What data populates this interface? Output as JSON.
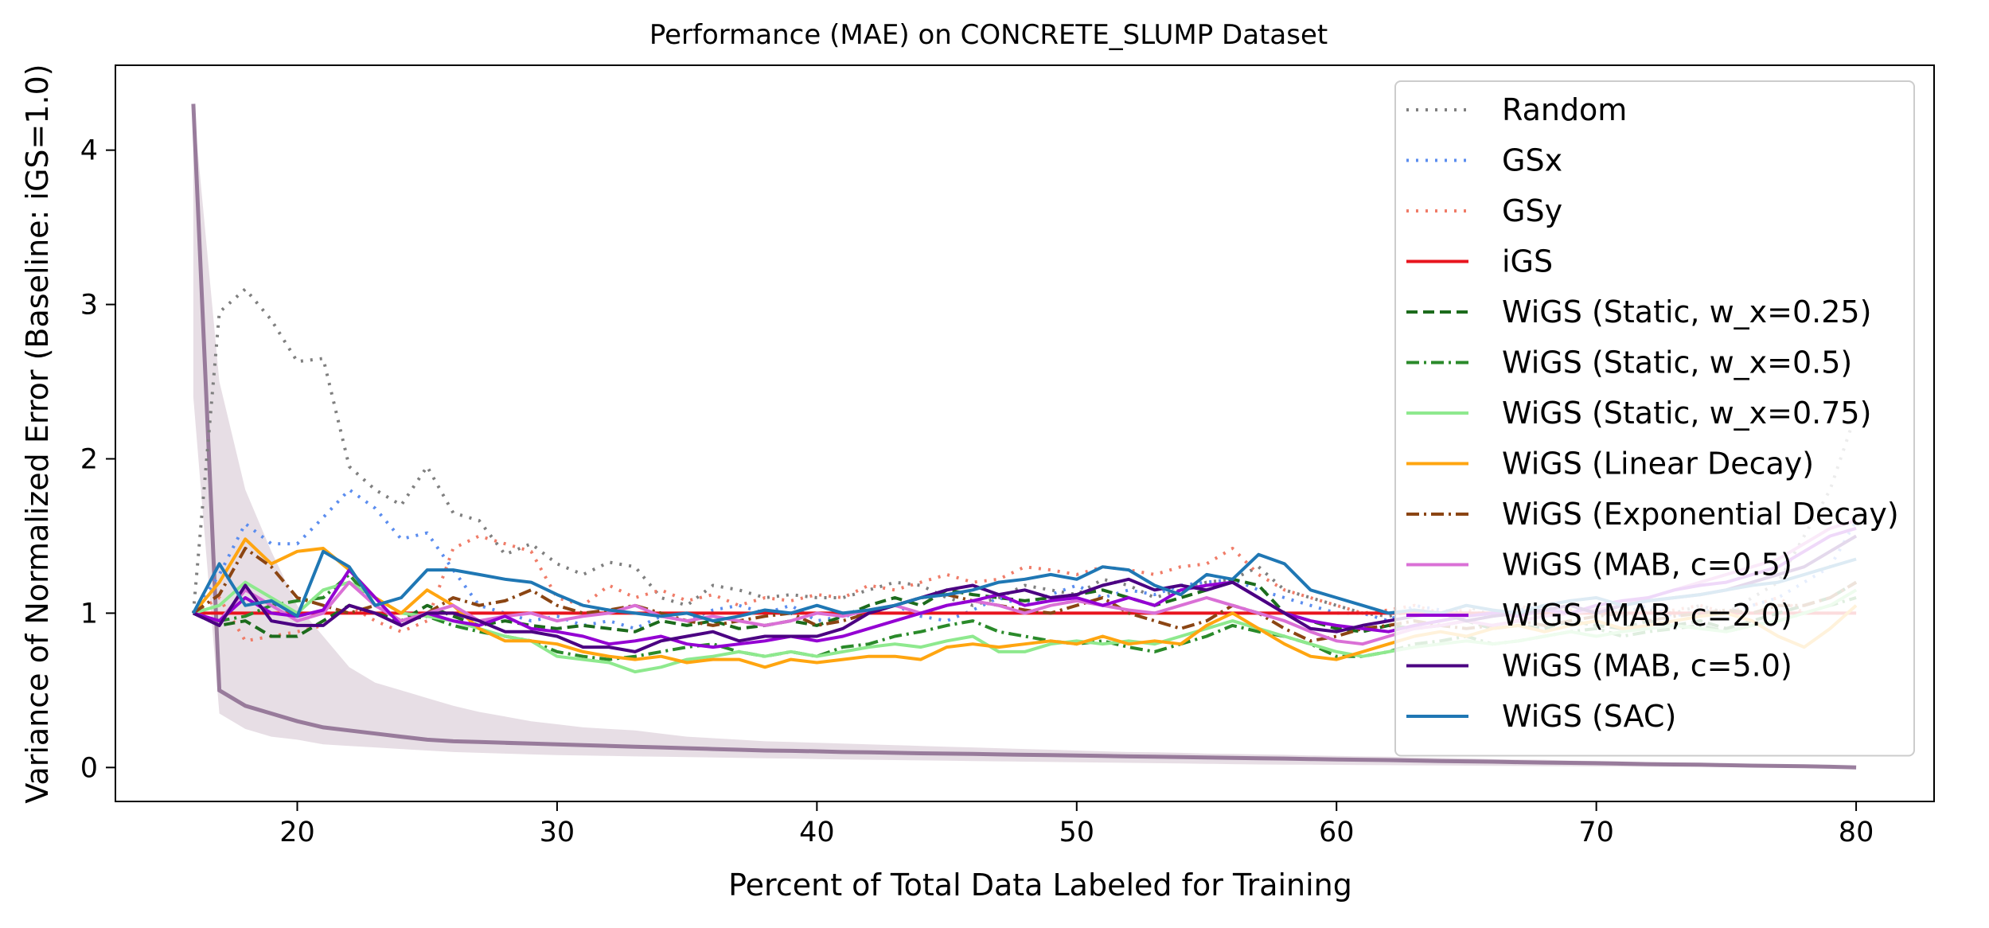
{
  "chart_data": {
    "type": "line",
    "title": "Performance (MAE) on CONCRETE_SLUMP Dataset",
    "xlabel": "Percent of Total Data Labeled for Training",
    "ylabel": "Variance of Normalized Error (Baseline: iGS=1.0)",
    "xlim": [
      13,
      83
    ],
    "ylim": [
      -0.22,
      4.55
    ],
    "xticks": [
      20,
      30,
      40,
      50,
      60,
      70,
      80
    ],
    "yticks": [
      0,
      1,
      2,
      3,
      4
    ],
    "grid": false,
    "legend_position": "top-right",
    "x": [
      16,
      17,
      18,
      19,
      20,
      21,
      22,
      23,
      24,
      25,
      26,
      27,
      28,
      29,
      30,
      31,
      32,
      33,
      34,
      35,
      36,
      37,
      38,
      39,
      40,
      41,
      42,
      43,
      44,
      45,
      46,
      47,
      48,
      49,
      50,
      51,
      52,
      53,
      54,
      55,
      56,
      57,
      58,
      59,
      60,
      61,
      62,
      63,
      64,
      65,
      66,
      67,
      68,
      69,
      70,
      71,
      72,
      73,
      74,
      75,
      76,
      77,
      78,
      79,
      80
    ],
    "series": [
      {
        "name": "Random",
        "color": "#7f7f7f",
        "dash": "dotted",
        "values": [
          1.0,
          2.95,
          3.1,
          2.9,
          2.63,
          2.65,
          1.95,
          1.8,
          1.7,
          1.95,
          1.65,
          1.6,
          1.38,
          1.45,
          1.32,
          1.25,
          1.33,
          1.3,
          1.1,
          1.05,
          1.18,
          1.15,
          1.1,
          1.12,
          1.1,
          1.1,
          1.15,
          1.2,
          1.18,
          1.1,
          1.05,
          1.1,
          1.18,
          1.15,
          1.12,
          1.22,
          1.18,
          1.1,
          1.15,
          1.2,
          1.22,
          1.3,
          1.15,
          1.1,
          1.05,
          1.0,
          0.98,
          1.02,
          1.0,
          1.05,
          0.98,
          1.0,
          1.02,
          1.05,
          1.0,
          0.98,
          1.02,
          1.0,
          1.05,
          1.0,
          1.1,
          1.2,
          1.5,
          1.8,
          2.3
        ]
      },
      {
        "name": "GSx",
        "color": "#5b8def",
        "dash": "dotted",
        "values": [
          1.0,
          1.25,
          1.58,
          1.45,
          1.45,
          1.62,
          1.8,
          1.68,
          1.48,
          1.52,
          1.28,
          1.05,
          1.0,
          0.95,
          0.98,
          0.92,
          0.95,
          0.9,
          0.98,
          0.95,
          1.02,
          1.05,
          1.0,
          1.05,
          0.95,
          0.98,
          1.0,
          1.05,
          0.98,
          0.95,
          1.02,
          1.1,
          1.05,
          1.12,
          1.18,
          1.1,
          1.15,
          1.12,
          1.18,
          1.2,
          1.22,
          1.15,
          1.1,
          1.05,
          1.0,
          1.0,
          0.95,
          1.05,
          1.02,
          1.0,
          0.98,
          1.02,
          1.05,
          1.0,
          1.02,
          1.0,
          1.05,
          0.98,
          1.02,
          1.0,
          1.05,
          1.1,
          1.2,
          1.3,
          1.6
        ]
      },
      {
        "name": "GSy",
        "color": "#f07c68",
        "dash": "dotted",
        "values": [
          1.0,
          1.1,
          0.82,
          0.85,
          0.88,
          0.92,
          1.05,
          0.95,
          0.88,
          0.95,
          1.42,
          1.5,
          1.45,
          1.4,
          1.1,
          1.05,
          1.18,
          1.1,
          1.15,
          1.08,
          1.12,
          1.05,
          1.1,
          1.08,
          1.12,
          1.1,
          1.18,
          1.15,
          1.2,
          1.25,
          1.2,
          1.22,
          1.3,
          1.28,
          1.25,
          1.3,
          1.28,
          1.25,
          1.3,
          1.32,
          1.42,
          1.25,
          1.15,
          1.1,
          1.05,
          1.0,
          1.02,
          1.05,
          1.0,
          1.02,
          0.98,
          1.05,
          1.0,
          1.02,
          1.0,
          1.05,
          1.0,
          1.02,
          1.05,
          1.0,
          1.05,
          1.1,
          1.0,
          1.0,
          1.0
        ]
      },
      {
        "name": "iGS",
        "color": "#e8141e",
        "dash": "solid",
        "values": [
          1,
          1,
          1,
          1,
          1,
          1,
          1,
          1,
          1,
          1,
          1,
          1,
          1,
          1,
          1,
          1,
          1,
          1,
          1,
          1,
          1,
          1,
          1,
          1,
          1,
          1,
          1,
          1,
          1,
          1,
          1,
          1,
          1,
          1,
          1,
          1,
          1,
          1,
          1,
          1,
          1,
          1,
          1,
          1,
          1,
          1,
          1,
          1,
          1,
          1,
          1,
          1,
          1,
          1,
          1,
          1,
          1,
          1,
          1,
          1,
          1,
          1,
          1,
          1,
          1
        ]
      },
      {
        "name": "WiGS (Static, w_x=0.25)",
        "color": "#1c6b1c",
        "dash": "dashed",
        "values": [
          1.0,
          0.92,
          0.95,
          0.85,
          0.85,
          0.95,
          1.05,
          1.0,
          0.95,
          1.05,
          0.98,
          0.92,
          0.95,
          0.92,
          0.9,
          0.92,
          0.9,
          0.88,
          0.95,
          0.92,
          0.95,
          0.9,
          0.92,
          0.95,
          0.92,
          0.98,
          1.05,
          1.1,
          1.05,
          1.15,
          1.12,
          1.1,
          1.08,
          1.1,
          1.12,
          1.15,
          1.1,
          1.05,
          1.1,
          1.15,
          1.22,
          1.18,
          1.0,
          0.95,
          0.9,
          0.88,
          0.92,
          0.9,
          0.92,
          0.95,
          0.9,
          0.92,
          0.9,
          0.95,
          0.92,
          0.9,
          0.95,
          0.92,
          0.95,
          0.9,
          0.95,
          1.0,
          1.05,
          1.1,
          1.2
        ]
      },
      {
        "name": "WiGS (Static, w_x=0.5)",
        "color": "#2a8a2a",
        "dash": "dashdot",
        "values": [
          1.0,
          0.95,
          0.98,
          1.05,
          1.08,
          1.1,
          1.25,
          1.05,
          0.95,
          0.98,
          0.92,
          0.88,
          0.85,
          0.82,
          0.75,
          0.72,
          0.7,
          0.72,
          0.75,
          0.78,
          0.8,
          0.75,
          0.72,
          0.75,
          0.72,
          0.78,
          0.8,
          0.85,
          0.88,
          0.92,
          0.95,
          0.88,
          0.85,
          0.82,
          0.8,
          0.82,
          0.78,
          0.75,
          0.8,
          0.85,
          0.92,
          0.88,
          0.85,
          0.8,
          0.72,
          0.72,
          0.75,
          0.8,
          0.82,
          0.85,
          0.8,
          0.82,
          0.85,
          0.88,
          0.9,
          0.85,
          0.88,
          0.9,
          0.92,
          0.88,
          0.92,
          0.95,
          1.0,
          1.05,
          1.1
        ]
      },
      {
        "name": "WiGS (Static, w_x=0.75)",
        "color": "#8ee98e",
        "dash": "solid",
        "values": [
          1.0,
          1.05,
          1.2,
          1.1,
          1.0,
          1.15,
          1.2,
          1.1,
          1.0,
          0.98,
          0.95,
          0.9,
          0.85,
          0.82,
          0.72,
          0.7,
          0.68,
          0.62,
          0.65,
          0.7,
          0.72,
          0.75,
          0.72,
          0.75,
          0.72,
          0.75,
          0.78,
          0.8,
          0.78,
          0.82,
          0.85,
          0.75,
          0.75,
          0.8,
          0.82,
          0.8,
          0.82,
          0.8,
          0.85,
          0.9,
          0.95,
          0.9,
          0.85,
          0.8,
          0.75,
          0.72,
          0.75,
          0.78,
          0.8,
          0.82,
          0.8,
          0.82,
          0.85,
          0.88,
          0.85,
          0.88,
          0.9,
          0.92,
          0.9,
          0.88,
          0.92,
          0.95,
          1.0,
          1.05,
          1.15
        ]
      },
      {
        "name": "WiGS (Linear Decay)",
        "color": "#ffa510",
        "dash": "solid",
        "values": [
          1.0,
          1.2,
          1.48,
          1.32,
          1.4,
          1.42,
          1.28,
          1.1,
          1.0,
          1.15,
          1.05,
          0.9,
          0.82,
          0.82,
          0.8,
          0.75,
          0.72,
          0.7,
          0.72,
          0.68,
          0.7,
          0.7,
          0.65,
          0.7,
          0.68,
          0.7,
          0.72,
          0.72,
          0.7,
          0.78,
          0.8,
          0.78,
          0.8,
          0.82,
          0.8,
          0.85,
          0.8,
          0.82,
          0.8,
          0.92,
          1.0,
          0.9,
          0.8,
          0.72,
          0.7,
          0.75,
          0.8,
          0.85,
          0.88,
          0.85,
          0.9,
          0.92,
          0.88,
          0.92,
          0.95,
          0.9,
          0.92,
          0.95,
          0.98,
          1.0,
          0.95,
          0.85,
          0.78,
          0.9,
          1.05
        ]
      },
      {
        "name": "WiGS (Exponential Decay)",
        "color": "#8b4513",
        "dash": "dashdot",
        "values": [
          1.0,
          1.12,
          1.42,
          1.3,
          1.1,
          1.05,
          1.0,
          1.05,
          0.95,
          1.0,
          1.1,
          1.05,
          1.08,
          1.15,
          1.05,
          1.0,
          1.02,
          1.05,
          1.0,
          0.95,
          0.92,
          0.95,
          0.98,
          1.0,
          0.92,
          0.95,
          1.0,
          1.05,
          1.1,
          1.12,
          1.08,
          1.05,
          1.02,
          1.0,
          1.05,
          1.1,
          1.0,
          0.95,
          0.9,
          0.95,
          1.05,
          1.0,
          0.9,
          0.82,
          0.85,
          0.9,
          0.92,
          0.95,
          0.92,
          0.9,
          0.92,
          0.95,
          0.92,
          0.95,
          0.98,
          1.0,
          0.95,
          0.98,
          1.0,
          1.02,
          1.0,
          1.05,
          1.05,
          1.1,
          1.2
        ]
      },
      {
        "name": "WiGS (MAB, c=0.5)",
        "color": "#da70d6",
        "dash": "solid",
        "values": [
          1.0,
          0.95,
          1.15,
          1.05,
          0.95,
          1.0,
          1.2,
          1.05,
          0.95,
          1.0,
          1.05,
          0.95,
          0.98,
          1.0,
          0.95,
          0.98,
          1.0,
          1.05,
          0.98,
          0.95,
          0.98,
          0.95,
          0.92,
          0.95,
          1.0,
          0.98,
          1.02,
          1.05,
          1.0,
          1.05,
          1.08,
          1.05,
          1.0,
          1.05,
          1.08,
          1.05,
          1.02,
          1.0,
          1.05,
          1.1,
          1.05,
          1.0,
          0.95,
          0.88,
          0.82,
          0.8,
          0.85,
          0.9,
          0.92,
          0.95,
          0.92,
          0.95,
          0.98,
          1.0,
          1.02,
          1.05,
          1.1,
          1.15,
          1.2,
          1.25,
          1.3,
          1.35,
          1.45,
          1.55,
          1.6
        ]
      },
      {
        "name": "WiGS (MAB, c=2.0)",
        "color": "#9400d3",
        "dash": "solid",
        "values": [
          1.0,
          0.95,
          1.1,
          1.0,
          0.98,
          1.02,
          1.28,
          1.1,
          0.92,
          1.0,
          0.95,
          0.92,
          0.98,
          0.9,
          0.88,
          0.85,
          0.8,
          0.82,
          0.85,
          0.8,
          0.78,
          0.8,
          0.82,
          0.85,
          0.82,
          0.85,
          0.9,
          0.95,
          1.0,
          1.05,
          1.08,
          1.12,
          1.05,
          1.08,
          1.1,
          1.05,
          1.1,
          1.05,
          1.15,
          1.18,
          1.2,
          1.1,
          1.0,
          0.95,
          0.92,
          0.9,
          0.88,
          0.92,
          0.95,
          0.98,
          1.0,
          0.98,
          1.02,
          1.0,
          1.05,
          1.08,
          1.1,
          1.15,
          1.18,
          1.2,
          1.25,
          1.3,
          1.4,
          1.5,
          1.55
        ]
      },
      {
        "name": "WiGS (MAB, c=5.0)",
        "color": "#4b0082",
        "dash": "solid",
        "values": [
          1.0,
          0.92,
          1.18,
          0.95,
          0.92,
          0.92,
          1.05,
          1.0,
          0.92,
          1.0,
          1.0,
          0.95,
          0.88,
          0.88,
          0.85,
          0.78,
          0.78,
          0.75,
          0.82,
          0.85,
          0.88,
          0.82,
          0.85,
          0.85,
          0.85,
          0.9,
          1.0,
          1.05,
          1.1,
          1.15,
          1.18,
          1.12,
          1.15,
          1.1,
          1.12,
          1.18,
          1.22,
          1.15,
          1.18,
          1.15,
          1.2,
          1.1,
          1.0,
          0.9,
          0.88,
          0.92,
          0.95,
          0.98,
          1.0,
          0.95,
          0.98,
          1.0,
          1.02,
          1.05,
          1.0,
          1.05,
          1.08,
          1.1,
          1.12,
          1.15,
          1.2,
          1.25,
          1.3,
          1.4,
          1.5
        ]
      },
      {
        "name": "WiGS (SAC)",
        "color": "#1f77b4",
        "dash": "solid",
        "values": [
          1.0,
          1.32,
          1.05,
          1.08,
          0.98,
          1.4,
          1.3,
          1.05,
          1.1,
          1.28,
          1.28,
          1.25,
          1.22,
          1.2,
          1.12,
          1.05,
          1.02,
          1.0,
          0.98,
          1.0,
          0.95,
          0.98,
          1.02,
          1.0,
          1.05,
          1.0,
          1.02,
          1.05,
          1.1,
          1.12,
          1.15,
          1.2,
          1.22,
          1.25,
          1.22,
          1.3,
          1.28,
          1.18,
          1.12,
          1.25,
          1.22,
          1.38,
          1.32,
          1.15,
          1.1,
          1.05,
          1.0,
          1.02,
          1.0,
          1.05,
          1.02,
          1.0,
          1.05,
          1.08,
          1.1,
          1.05,
          1.08,
          1.1,
          1.12,
          1.15,
          1.18,
          1.2,
          1.25,
          1.3,
          1.35
        ]
      }
    ],
    "variance_band_mean": [
      4.3,
      0.5,
      0.4,
      0.35,
      0.3,
      0.26,
      0.24,
      0.22,
      0.2,
      0.18,
      0.17,
      0.165,
      0.16,
      0.155,
      0.15,
      0.145,
      0.14,
      0.135,
      0.13,
      0.125,
      0.12,
      0.115,
      0.11,
      0.108,
      0.105,
      0.1,
      0.098,
      0.095,
      0.092,
      0.09,
      0.088,
      0.085,
      0.082,
      0.08,
      0.078,
      0.075,
      0.072,
      0.07,
      0.068,
      0.065,
      0.062,
      0.06,
      0.058,
      0.055,
      0.052,
      0.05,
      0.048,
      0.045,
      0.042,
      0.04,
      0.038,
      0.035,
      0.032,
      0.03,
      0.028,
      0.025,
      0.022,
      0.02,
      0.018,
      0.015,
      0.012,
      0.01,
      0.008,
      0.005,
      0.0
    ],
    "variance_band_upper": [
      4.3,
      2.5,
      1.8,
      1.4,
      1.05,
      0.85,
      0.65,
      0.55,
      0.5,
      0.45,
      0.4,
      0.36,
      0.33,
      0.3,
      0.28,
      0.26,
      0.25,
      0.24,
      0.22,
      0.2,
      0.19,
      0.18,
      0.17,
      0.165,
      0.16,
      0.155,
      0.15,
      0.145,
      0.14,
      0.135,
      0.13,
      0.125,
      0.12,
      0.115,
      0.11,
      0.105,
      0.1,
      0.098,
      0.095,
      0.09,
      0.088,
      0.085,
      0.082,
      0.078,
      0.075,
      0.072,
      0.07,
      0.065,
      0.062,
      0.06,
      0.055,
      0.052,
      0.05,
      0.045,
      0.042,
      0.04,
      0.035,
      0.032,
      0.03,
      0.025,
      0.022,
      0.018,
      0.015,
      0.01,
      0.0
    ],
    "variance_band_lower": [
      2.4,
      0.35,
      0.25,
      0.2,
      0.18,
      0.15,
      0.14,
      0.13,
      0.12,
      0.11,
      0.1,
      0.095,
      0.09,
      0.085,
      0.08,
      0.078,
      0.075,
      0.072,
      0.07,
      0.068,
      0.065,
      0.062,
      0.06,
      0.058,
      0.055,
      0.052,
      0.05,
      0.048,
      0.046,
      0.044,
      0.042,
      0.04,
      0.038,
      0.036,
      0.034,
      0.032,
      0.03,
      0.028,
      0.026,
      0.024,
      0.022,
      0.02,
      0.019,
      0.018,
      0.017,
      0.016,
      0.015,
      0.014,
      0.013,
      0.012,
      0.011,
      0.01,
      0.009,
      0.008,
      0.007,
      0.006,
      0.005,
      0.004,
      0.003,
      0.002,
      0.002,
      0.001,
      0.001,
      0.0,
      0.0
    ]
  }
}
